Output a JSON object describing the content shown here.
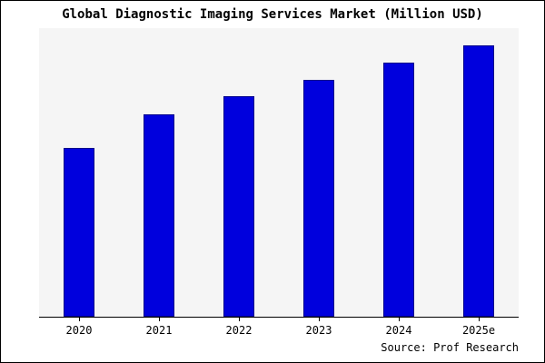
{
  "figure": {
    "title": "Global Diagnostic Imaging Services Market (Million USD)",
    "source": "Source: Prof Research"
  },
  "colors": {
    "bar_fill": "#0000dd",
    "bar_edge": "#00008b",
    "plot_bg": "#f5f5f5",
    "page_bg": "#ffffff",
    "border": "#000000",
    "text": "#000000"
  },
  "chart_data": {
    "type": "bar",
    "categories": [
      "2020",
      "2021",
      "2022",
      "2023",
      "2024",
      "2025e"
    ],
    "values": [
      58.5,
      70,
      76.5,
      82,
      88,
      94
    ],
    "title": "Global Diagnostic Imaging Services Market (Million USD)",
    "xlabel": "",
    "ylabel": "",
    "ylim": [
      0,
      100
    ],
    "grid": false,
    "legend": false,
    "note": "y-axis has no tick labels in the source image; values are relative estimates as a percentage of the axis maximum"
  }
}
